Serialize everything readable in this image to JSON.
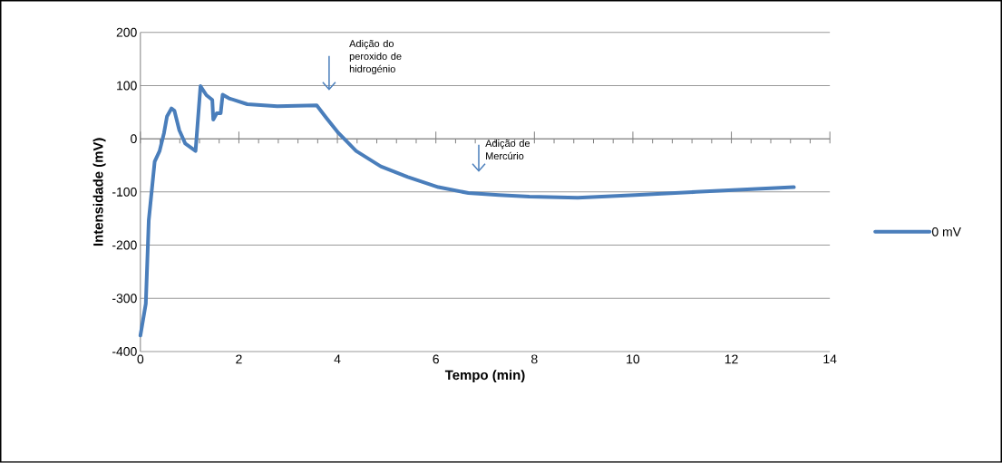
{
  "chart_data": {
    "type": "line",
    "xlabel": "Tempo (min)",
    "ylabel": "Intensidade (mV)",
    "xlim": [
      0,
      14
    ],
    "xticks": [
      0,
      2,
      4,
      6,
      8,
      10,
      12,
      14
    ],
    "ylim": [
      -400,
      200
    ],
    "yticks": [
      -400,
      -300,
      -200,
      -100,
      0,
      100,
      200
    ],
    "grid": "y",
    "legend": "right",
    "line_style": "solid",
    "marker": "none",
    "series": [
      {
        "name": "0 mV",
        "color": "#4a7ebb",
        "x": [
          0,
          0.11,
          0.17,
          0.29,
          0.39,
          0.48,
          0.54,
          0.63,
          0.69,
          0.79,
          0.91,
          1.12,
          1.22,
          1.34,
          1.46,
          1.48,
          1.55,
          1.63,
          1.67,
          1.8,
          2.17,
          2.78,
          3.58,
          3.77,
          4.02,
          4.38,
          4.88,
          5.43,
          6.05,
          6.66,
          7.28,
          7.9,
          8.88,
          10.05,
          11.28,
          13.27
        ],
        "values": [
          -370,
          -310,
          -153,
          -43,
          -23,
          11,
          42,
          57,
          53,
          16,
          -9,
          -23,
          99,
          82,
          73,
          36,
          48,
          48,
          83,
          76,
          65,
          61,
          63,
          40,
          11,
          -23,
          -52,
          -72,
          -91,
          -102,
          -106,
          -109,
          -111,
          -106,
          -100,
          -91
        ]
      }
    ],
    "annotations": [
      "Adição do peroxido de hidrogénio",
      "Adição de Mercúrio"
    ]
  }
}
